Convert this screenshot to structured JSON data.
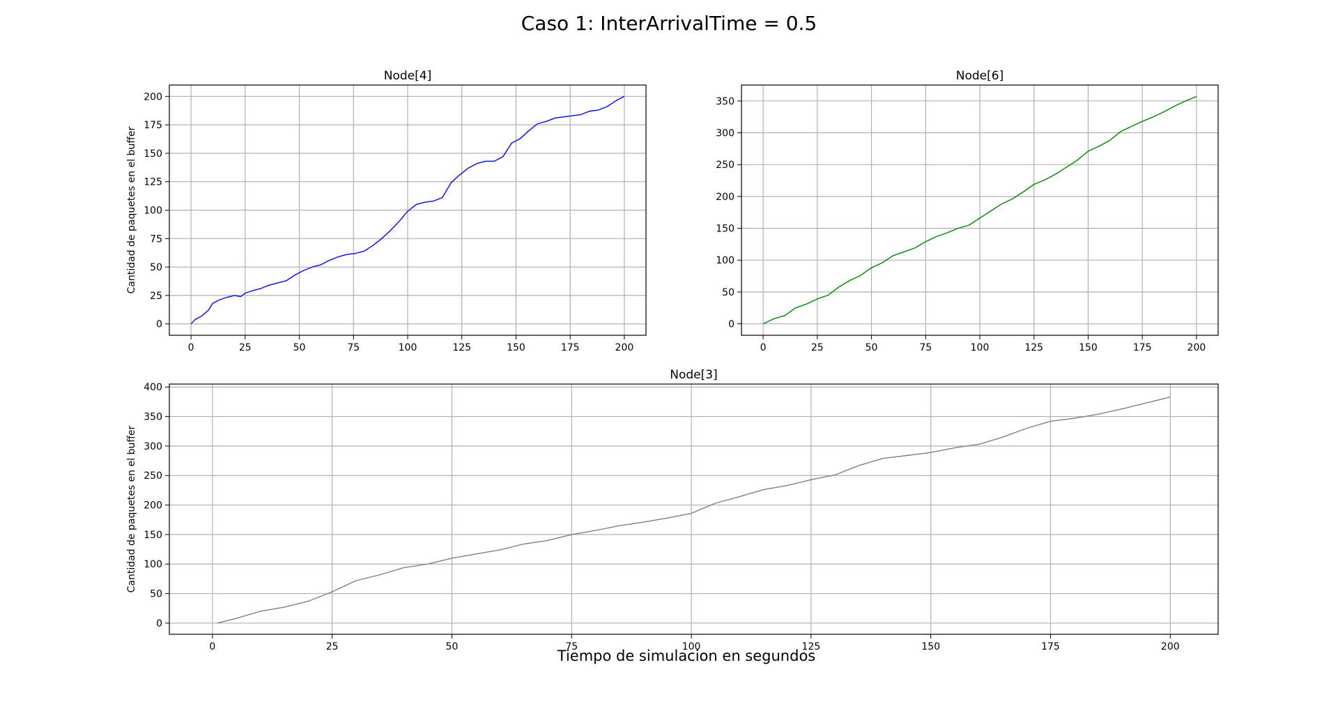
{
  "figure": {
    "suptitle": "Caso 1: InterArrivalTime = 0.5",
    "xlabel": "Tiempo de simulacion en segundos"
  },
  "chart_data": [
    {
      "type": "line",
      "title": "Node[4]",
      "xlabel": "",
      "ylabel": "Cantidad de paquetes en el buffer",
      "xlim": [
        -10,
        210
      ],
      "ylim": [
        -10,
        210
      ],
      "xticks": [
        0,
        25,
        50,
        75,
        100,
        125,
        150,
        175,
        200
      ],
      "yticks": [
        0,
        25,
        50,
        75,
        100,
        125,
        150,
        175,
        200
      ],
      "grid": true,
      "color": "#0000ff",
      "series": [
        {
          "x": [
            0,
            2,
            5,
            8,
            10,
            13,
            16,
            20,
            23,
            25,
            28,
            32,
            36,
            40,
            44,
            48,
            52,
            56,
            60,
            64,
            68,
            72,
            76,
            80,
            84,
            88,
            92,
            96,
            100,
            104,
            108,
            112,
            116,
            120,
            124,
            128,
            132,
            136,
            140,
            144,
            148,
            152,
            156,
            160,
            164,
            168,
            172,
            176,
            180,
            184,
            188,
            192,
            196,
            200
          ],
          "y": [
            0,
            4,
            7,
            12,
            18,
            21,
            23,
            25,
            24,
            27,
            29,
            31,
            34,
            36,
            38,
            43,
            47,
            50,
            52,
            56,
            59,
            61,
            62,
            64,
            69,
            75,
            82,
            90,
            99,
            105,
            107,
            108,
            111,
            124,
            131,
            137,
            141,
            143,
            143,
            147,
            159,
            163,
            170,
            176,
            178,
            181,
            182,
            183,
            184,
            187,
            188,
            191,
            196,
            200
          ]
        }
      ]
    },
    {
      "type": "line",
      "title": "Node[6]",
      "xlabel": "",
      "ylabel": "",
      "xlim": [
        -10,
        210
      ],
      "ylim": [
        -18,
        375
      ],
      "xticks": [
        0,
        25,
        50,
        75,
        100,
        125,
        150,
        175,
        200
      ],
      "yticks": [
        0,
        50,
        100,
        150,
        200,
        250,
        300,
        350
      ],
      "grid": true,
      "color": "#008000",
      "series": [
        {
          "x": [
            0,
            5,
            10,
            15,
            20,
            25,
            30,
            35,
            40,
            45,
            50,
            55,
            60,
            65,
            70,
            75,
            80,
            85,
            90,
            95,
            100,
            105,
            110,
            115,
            120,
            125,
            130,
            135,
            140,
            145,
            150,
            155,
            160,
            165,
            170,
            175,
            180,
            185,
            190,
            195,
            200
          ],
          "y": [
            0,
            8,
            13,
            25,
            31,
            39,
            45,
            58,
            68,
            76,
            88,
            96,
            107,
            113,
            119,
            129,
            137,
            143,
            150,
            155,
            166,
            177,
            188,
            196,
            207,
            219,
            226,
            235,
            246,
            257,
            271,
            279,
            288,
            302,
            310,
            318,
            325,
            333,
            342,
            350,
            357
          ]
        }
      ]
    },
    {
      "type": "line",
      "title": "Node[3]",
      "xlabel": "Tiempo de simulacion en segundos",
      "ylabel": "Cantidad de paquetes en el buffer",
      "xlim": [
        -9,
        210
      ],
      "ylim": [
        -19,
        405
      ],
      "xticks": [
        0,
        25,
        50,
        75,
        100,
        125,
        150,
        175,
        200
      ],
      "yticks": [
        0,
        50,
        100,
        150,
        200,
        250,
        300,
        350,
        400
      ],
      "grid": true,
      "color": "#808080",
      "series": [
        {
          "x": [
            1,
            5,
            10,
            15,
            20,
            25,
            30,
            35,
            40,
            45,
            50,
            55,
            60,
            65,
            70,
            75,
            80,
            85,
            90,
            95,
            100,
            105,
            110,
            115,
            120,
            125,
            130,
            135,
            140,
            145,
            150,
            155,
            160,
            165,
            170,
            175,
            180,
            185,
            190,
            195,
            200
          ],
          "y": [
            0,
            8,
            20,
            27,
            37,
            53,
            72,
            82,
            94,
            100,
            110,
            117,
            124,
            134,
            140,
            150,
            157,
            165,
            171,
            178,
            186,
            203,
            214,
            226,
            233,
            243,
            251,
            267,
            279,
            284,
            289,
            297,
            303,
            315,
            330,
            342,
            347,
            354,
            363,
            373,
            383
          ]
        }
      ]
    }
  ]
}
